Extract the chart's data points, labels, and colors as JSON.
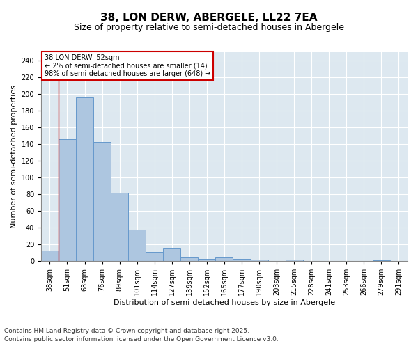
{
  "title1": "38, LON DERW, ABERGELE, LL22 7EA",
  "title2": "Size of property relative to semi-detached houses in Abergele",
  "xlabel": "Distribution of semi-detached houses by size in Abergele",
  "ylabel": "Number of semi-detached properties",
  "categories": [
    "38sqm",
    "51sqm",
    "63sqm",
    "76sqm",
    "89sqm",
    "101sqm",
    "114sqm",
    "127sqm",
    "139sqm",
    "152sqm",
    "165sqm",
    "177sqm",
    "190sqm",
    "203sqm",
    "215sqm",
    "228sqm",
    "241sqm",
    "253sqm",
    "266sqm",
    "279sqm",
    "291sqm"
  ],
  "values": [
    13,
    146,
    196,
    143,
    82,
    38,
    11,
    15,
    5,
    3,
    5,
    3,
    2,
    0,
    2,
    0,
    0,
    0,
    0,
    1,
    0
  ],
  "bar_color": "#adc6e0",
  "bar_edge_color": "#6699cc",
  "highlight_line_color": "#cc0000",
  "annotation_title": "38 LON DERW: 52sqm",
  "annotation_line1": "← 2% of semi-detached houses are smaller (14)",
  "annotation_line2": "98% of semi-detached houses are larger (648) →",
  "annotation_box_color": "#ffffff",
  "annotation_box_edge": "#cc0000",
  "background_color": "#dde8f0",
  "grid_color": "#ffffff",
  "fig_background": "#ffffff",
  "ylim": [
    0,
    250
  ],
  "yticks": [
    0,
    20,
    40,
    60,
    80,
    100,
    120,
    140,
    160,
    180,
    200,
    220,
    240
  ],
  "footer1": "Contains HM Land Registry data © Crown copyright and database right 2025.",
  "footer2": "Contains public sector information licensed under the Open Government Licence v3.0.",
  "title1_fontsize": 11,
  "title2_fontsize": 9,
  "axis_label_fontsize": 8,
  "tick_fontsize": 7,
  "annotation_fontsize": 7,
  "footer_fontsize": 6.5
}
